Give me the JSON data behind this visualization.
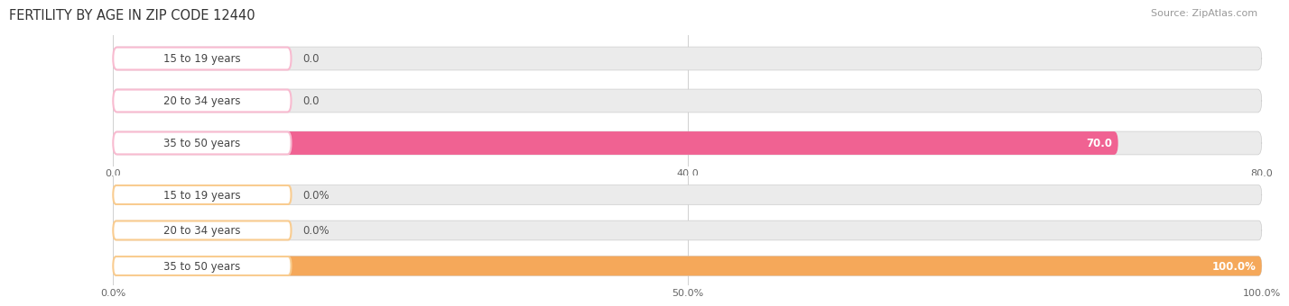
{
  "title": "FERTILITY BY AGE IN ZIP CODE 12440",
  "source": "Source: ZipAtlas.com",
  "chart1": {
    "categories": [
      "15 to 19 years",
      "20 to 34 years",
      "35 to 50 years"
    ],
    "values": [
      0.0,
      0.0,
      70.0
    ],
    "bar_color": "#f06292",
    "bar_color_light": "#f8bbd0",
    "track_color": "#ebebeb",
    "xlim": [
      0,
      80
    ],
    "xticks": [
      0.0,
      40.0,
      80.0
    ],
    "xtick_labels": [
      "0.0",
      "40.0",
      "80.0"
    ],
    "value_labels": [
      "0.0",
      "0.0",
      "70.0"
    ]
  },
  "chart2": {
    "categories": [
      "15 to 19 years",
      "20 to 34 years",
      "35 to 50 years"
    ],
    "values": [
      0.0,
      0.0,
      100.0
    ],
    "bar_color": "#f5a85a",
    "bar_color_light": "#f9cc90",
    "track_color": "#ebebeb",
    "xlim": [
      0,
      100
    ],
    "xticks": [
      0.0,
      50.0,
      100.0
    ],
    "xtick_labels": [
      "0.0%",
      "50.0%",
      "100.0%"
    ],
    "value_labels": [
      "0.0%",
      "0.0%",
      "100.0%"
    ]
  },
  "background_color": "#ffffff",
  "grid_color": "#d0d0d0",
  "label_font_size": 8.5,
  "value_font_size": 8.5,
  "title_font_size": 10.5,
  "source_font_size": 8,
  "bar_height": 0.55
}
